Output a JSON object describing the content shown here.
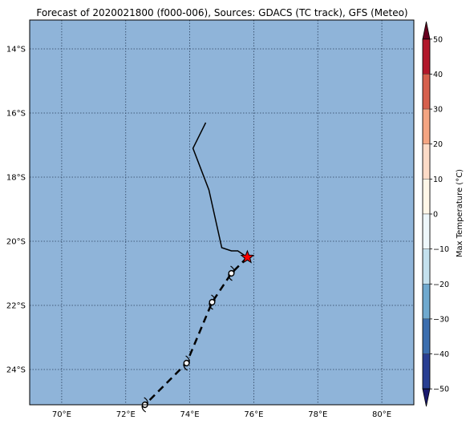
{
  "title": "Forecast of 2020021800 (f000-006), Sources: GDACS (TC track), GFS (Meteo)",
  "map": {
    "ocean_color": "#8fb4d9",
    "lon_range": [
      69.0,
      81.0
    ],
    "lat_range": [
      -25.1,
      -13.1
    ],
    "lon_ticks": [
      {
        "value": 70,
        "label": "70°E"
      },
      {
        "value": 72,
        "label": "72°E"
      },
      {
        "value": 74,
        "label": "74°E"
      },
      {
        "value": 76,
        "label": "76°E"
      },
      {
        "value": 78,
        "label": "78°E"
      },
      {
        "value": 80,
        "label": "80°E"
      }
    ],
    "lat_ticks": [
      {
        "value": -14,
        "label": "14°S"
      },
      {
        "value": -16,
        "label": "16°S"
      },
      {
        "value": -18,
        "label": "18°S"
      },
      {
        "value": -20,
        "label": "20°S"
      },
      {
        "value": -22,
        "label": "22°S"
      },
      {
        "value": -24,
        "label": "24°S"
      }
    ],
    "grid": true
  },
  "past_track": [
    {
      "lon": 74.5,
      "lat": -16.3
    },
    {
      "lon": 74.1,
      "lat": -17.1
    },
    {
      "lon": 74.6,
      "lat": -18.4
    },
    {
      "lon": 75.0,
      "lat": -20.2
    },
    {
      "lon": 75.3,
      "lat": -20.3
    },
    {
      "lon": 75.5,
      "lat": -20.3
    },
    {
      "lon": 75.8,
      "lat": -20.5
    }
  ],
  "current_position": {
    "lon": 75.8,
    "lat": -20.5
  },
  "forecast_track": [
    {
      "lon": 75.8,
      "lat": -20.5
    },
    {
      "lon": 75.3,
      "lat": -21.0
    },
    {
      "lon": 74.7,
      "lat": -21.9
    },
    {
      "lon": 73.9,
      "lat": -23.8
    },
    {
      "lon": 72.6,
      "lat": -25.1
    }
  ],
  "forecast_points": [
    {
      "lon": 75.3,
      "lat": -21.0
    },
    {
      "lon": 74.7,
      "lat": -21.9
    },
    {
      "lon": 73.9,
      "lat": -23.8
    },
    {
      "lon": 72.6,
      "lat": -25.1
    }
  ],
  "colorbar": {
    "label": "Max Temperature (°C)",
    "min": -55,
    "max": 55,
    "ticks": [
      {
        "value": 50,
        "label": "50"
      },
      {
        "value": 40,
        "label": "40"
      },
      {
        "value": 30,
        "label": "30"
      },
      {
        "value": 20,
        "label": "20"
      },
      {
        "value": 10,
        "label": "10"
      },
      {
        "value": 0,
        "label": "0"
      },
      {
        "value": -10,
        "label": "−10"
      },
      {
        "value": -20,
        "label": "−20"
      },
      {
        "value": -30,
        "label": "−30"
      },
      {
        "value": -40,
        "label": "−40"
      },
      {
        "value": -50,
        "label": "−50"
      }
    ],
    "bands": [
      {
        "from": 50,
        "to": 55,
        "color": "#67001f"
      },
      {
        "from": 40,
        "to": 50,
        "color": "#b2182b"
      },
      {
        "from": 30,
        "to": 40,
        "color": "#d6604d"
      },
      {
        "from": 20,
        "to": 30,
        "color": "#f4a582"
      },
      {
        "from": 10,
        "to": 20,
        "color": "#fddbc7"
      },
      {
        "from": 0,
        "to": 10,
        "color": "#fff7e8"
      },
      {
        "from": -10,
        "to": 0,
        "color": "#eef7fb"
      },
      {
        "from": -20,
        "to": -10,
        "color": "#c4e1ee"
      },
      {
        "from": -30,
        "to": -20,
        "color": "#6fa9cf"
      },
      {
        "from": -40,
        "to": -30,
        "color": "#3b6eaf"
      },
      {
        "from": -50,
        "to": -40,
        "color": "#283e92"
      },
      {
        "from": -55,
        "to": -50,
        "color": "#1a1a6e"
      }
    ]
  }
}
